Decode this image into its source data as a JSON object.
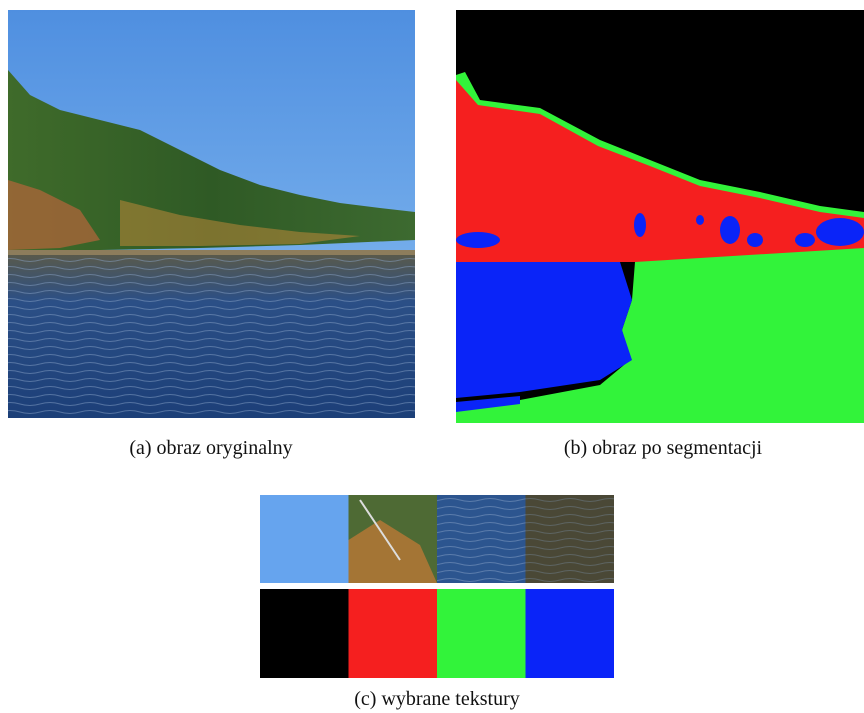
{
  "figure": {
    "subfigures": [
      {
        "caption": "(a) obraz oryginalny"
      },
      {
        "caption": "(b) obraz po segmentacji"
      },
      {
        "caption": "(c) wybrane tekstury"
      }
    ]
  }
}
